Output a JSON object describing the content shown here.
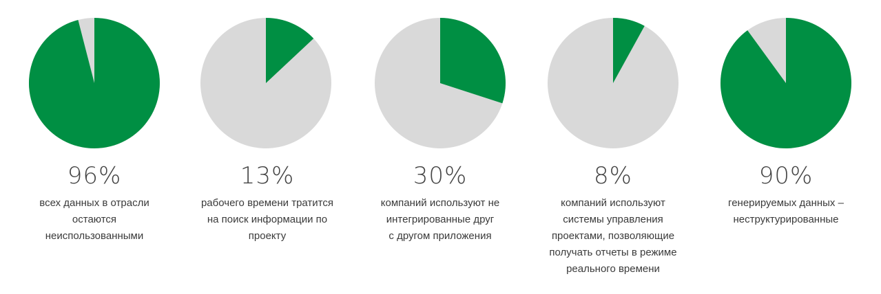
{
  "colors": {
    "highlight": "#008F43",
    "remainder": "#D9D9D9",
    "text": "#333333"
  },
  "chart_data": [
    {
      "type": "pie",
      "value_percent": 96,
      "label": "96%",
      "caption_lines": [
        "всех данных в отрасли",
        "остаются",
        "неиспользованными"
      ]
    },
    {
      "type": "pie",
      "value_percent": 13,
      "label": "13%",
      "caption_lines": [
        "рабочего времени тратится",
        "на поиск информации по",
        "проекту"
      ]
    },
    {
      "type": "pie",
      "value_percent": 30,
      "label": "30%",
      "caption_lines": [
        "компаний используют не",
        "интегрированные друг",
        "с другом приложения"
      ]
    },
    {
      "type": "pie",
      "value_percent": 8,
      "label": "8%",
      "caption_lines": [
        "компаний используют",
        "системы управления",
        "проектами, позволяющие",
        "получать отчеты в режиме",
        "реального времени"
      ]
    },
    {
      "type": "pie",
      "value_percent": 90,
      "label": "90%",
      "caption_lines": [
        "генерируемых данных –",
        "неструктурированные"
      ]
    }
  ]
}
